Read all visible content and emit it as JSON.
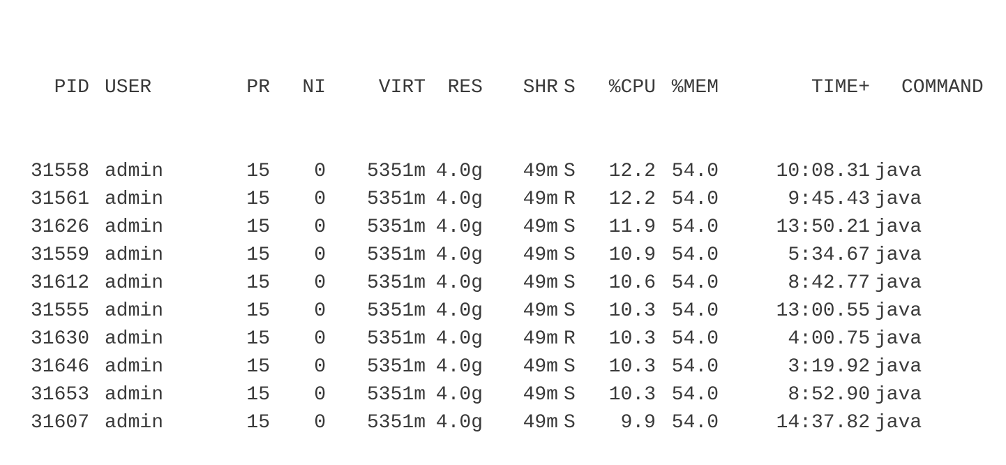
{
  "header": {
    "pid": "PID",
    "user": "USER",
    "pr": "PR",
    "ni": "NI",
    "virt": "VIRT",
    "res": "RES",
    "shr": "SHR",
    "s": "S",
    "cpu": "%CPU",
    "mem": "%MEM",
    "time": "TIME+",
    "command": "COMMAND"
  },
  "rows": [
    {
      "pid": "31558",
      "user": "admin",
      "pr": "15",
      "ni": "0",
      "virt": "5351m",
      "res": "4.0g",
      "shr": "49m",
      "s": "S",
      "cpu": "12.2",
      "mem": "54.0",
      "time": "10:08.31",
      "command": "java"
    },
    {
      "pid": "31561",
      "user": "admin",
      "pr": "15",
      "ni": "0",
      "virt": "5351m",
      "res": "4.0g",
      "shr": "49m",
      "s": "R",
      "cpu": "12.2",
      "mem": "54.0",
      "time": "9:45.43",
      "command": "java"
    },
    {
      "pid": "31626",
      "user": "admin",
      "pr": "15",
      "ni": "0",
      "virt": "5351m",
      "res": "4.0g",
      "shr": "49m",
      "s": "S",
      "cpu": "11.9",
      "mem": "54.0",
      "time": "13:50.21",
      "command": "java"
    },
    {
      "pid": "31559",
      "user": "admin",
      "pr": "15",
      "ni": "0",
      "virt": "5351m",
      "res": "4.0g",
      "shr": "49m",
      "s": "S",
      "cpu": "10.9",
      "mem": "54.0",
      "time": "5:34.67",
      "command": "java"
    },
    {
      "pid": "31612",
      "user": "admin",
      "pr": "15",
      "ni": "0",
      "virt": "5351m",
      "res": "4.0g",
      "shr": "49m",
      "s": "S",
      "cpu": "10.6",
      "mem": "54.0",
      "time": "8:42.77",
      "command": "java"
    },
    {
      "pid": "31555",
      "user": "admin",
      "pr": "15",
      "ni": "0",
      "virt": "5351m",
      "res": "4.0g",
      "shr": "49m",
      "s": "S",
      "cpu": "10.3",
      "mem": "54.0",
      "time": "13:00.55",
      "command": "java"
    },
    {
      "pid": "31630",
      "user": "admin",
      "pr": "15",
      "ni": "0",
      "virt": "5351m",
      "res": "4.0g",
      "shr": "49m",
      "s": "R",
      "cpu": "10.3",
      "mem": "54.0",
      "time": "4:00.75",
      "command": "java"
    },
    {
      "pid": "31646",
      "user": "admin",
      "pr": "15",
      "ni": "0",
      "virt": "5351m",
      "res": "4.0g",
      "shr": "49m",
      "s": "S",
      "cpu": "10.3",
      "mem": "54.0",
      "time": "3:19.92",
      "command": "java"
    },
    {
      "pid": "31653",
      "user": "admin",
      "pr": "15",
      "ni": "0",
      "virt": "5351m",
      "res": "4.0g",
      "shr": "49m",
      "s": "S",
      "cpu": "10.3",
      "mem": "54.0",
      "time": "8:52.90",
      "command": "java"
    },
    {
      "pid": "31607",
      "user": "admin",
      "pr": "15",
      "ni": "0",
      "virt": "5351m",
      "res": "4.0g",
      "shr": "49m",
      "s": "S",
      "cpu": "9.9",
      "mem": "54.0",
      "time": "14:37.82",
      "command": "java"
    }
  ]
}
